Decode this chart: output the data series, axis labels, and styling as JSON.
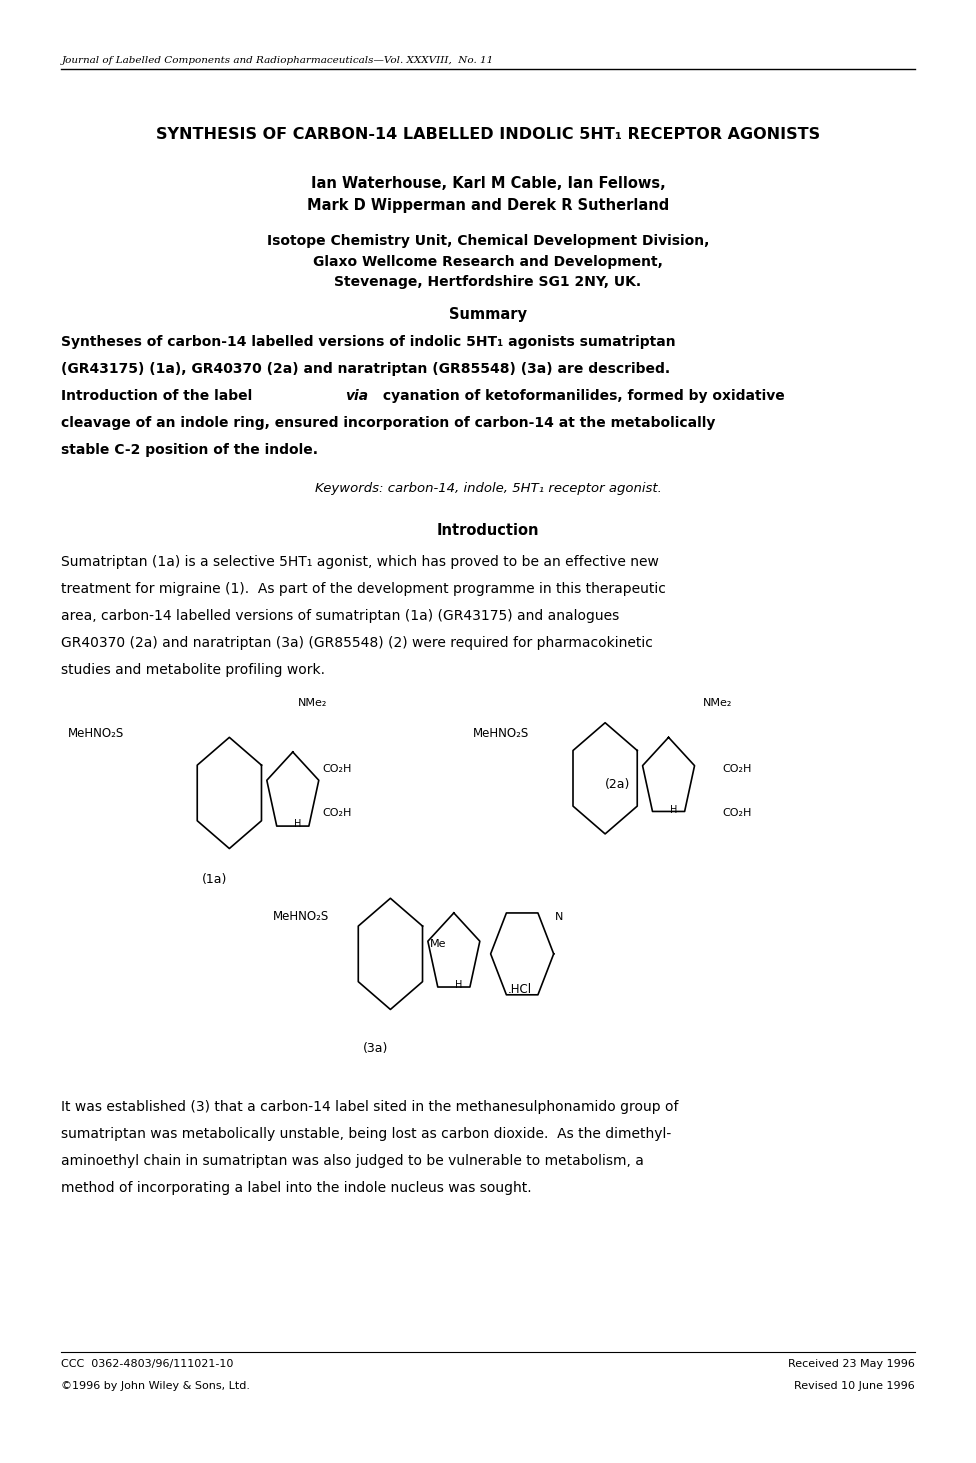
{
  "background_color": "#ffffff",
  "page_width": 9.76,
  "page_height": 14.63,
  "journal_header": "Journal of Labelled Components and Radiopharmaceuticals—Vol. XXXVIII,  No. 11",
  "title": "SYNTHESIS OF CARBON-14 LABELLED INDOLIC 5HT₁ RECEPTOR AGONISTS",
  "authors": "Ian Waterhouse, Karl M Cable, Ian Fellows,\nMark D Wipperman and Derek R Sutherland",
  "affiliation1": "Isotope Chemistry Unit, Chemical Development Division,",
  "affiliation2": "Glaxo Wellcome Research and Development,",
  "affiliation3": "Stevenage, Hertfordshire SG1 2NY, UK.",
  "summary_header": "Summary",
  "summary_text": "Syntheses of carbon-14 labelled versions of indolic 5HT₁ agonists sumatriptan\n(GR43175) (1a), GR40370 (2a) and naratriptan (GR85548) (3a) are described.\nIntroduction of the label via cyanation of ketoformanilides, formed by oxidative\ncleavage of an indole ring, ensured incorporation of carbon-14 at the metabolically\nstable C-2 position of the indole.",
  "keywords_text": "Keywords: carbon-14, indole, 5HT₁ receptor agonist.",
  "intro_header": "Introduction",
  "intro_text1": "Sumatriptan (1a) is a selective 5HT₁ agonist, which has proved to be an effective new\ntreatment for migraine (1).  As part of the development programme in this therapeutic\narea, carbon-14 labelled versions of sumatriptan (1a) (GR43175) and analogues\nGR40370 (2a) and naratriptan (3a) (GR85548) (2) were required for pharmacokinetic\nstudies and metabolite profiling work.",
  "footer_left1": "CCC  0362-4803/96/111021-10",
  "footer_left2": "©1996 by John Wiley & Sons, Ltd.",
  "footer_right1": "Received 23 May 1996",
  "footer_right2": "Revised 10 June 1996",
  "bottom_text": "It was established (3) that a carbon-14 label sited in the methanesulphonamido group of\nsumatriptan was metabolically unstable, being lost as carbon dioxide.  As the dimethyl-\naminoethyl chain in sumatriptan was also judged to be vulnerable to metabolism, a\nmethod of incorporating a label into the indole nucleus was sought."
}
